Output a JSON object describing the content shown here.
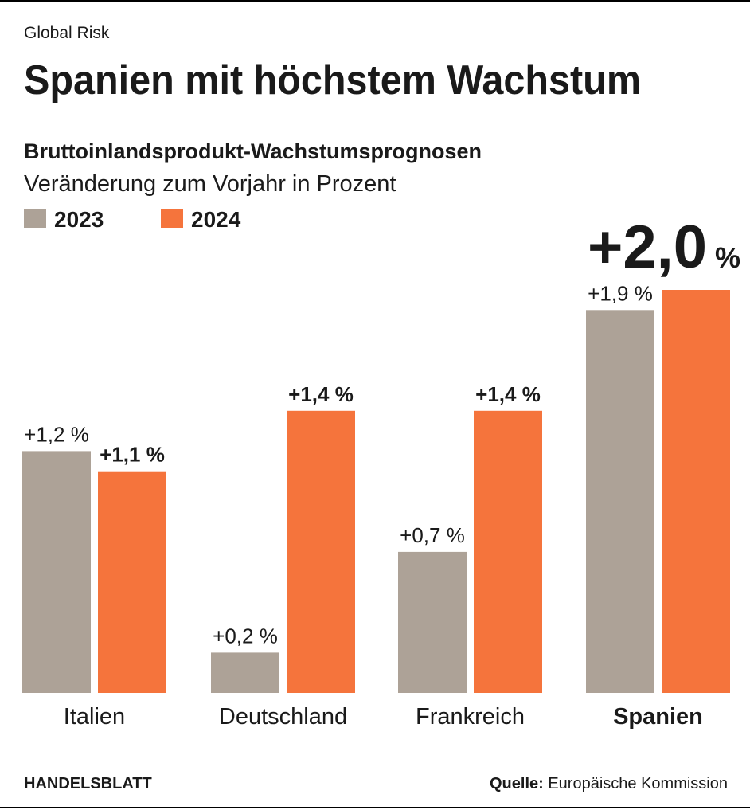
{
  "chart_data": {
    "type": "bar",
    "kicker": "Global Risk",
    "title": "Spanien mit höchstem Wachstum",
    "subtitle": "Bruttoinlandsprodukt-Wachstumsprognosen",
    "note": "Veränderung zum Vorjahr in Prozent",
    "categories": [
      "Italien",
      "Deutschland",
      "Frankreich",
      "Spanien"
    ],
    "highlight": 3,
    "series": [
      {
        "name": "2023",
        "color": "#ada297",
        "values": [
          1.2,
          0.2,
          0.7,
          1.9
        ],
        "value_labels": [
          "+1,2 %",
          "+0,2 %",
          "+0,7 %",
          "+1,9 %"
        ]
      },
      {
        "name": "2024",
        "color": "#f5743c",
        "values": [
          1.1,
          1.4,
          1.4,
          2.0
        ],
        "value_labels": [
          "+1,1 %",
          "+1,4 %",
          "+1,4 %",
          "+2,0 %"
        ]
      }
    ],
    "ylim": [
      0,
      2
    ],
    "brand": "HANDELSBLATT",
    "source_label": "Quelle:",
    "source": "Europäische Kommission"
  }
}
